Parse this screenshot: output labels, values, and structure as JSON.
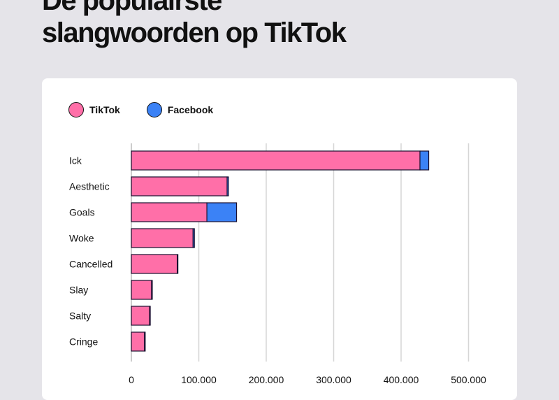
{
  "title_line1": "De populairste",
  "title_line2": "slangwoorden op TikTok",
  "chart_data": {
    "type": "bar",
    "orientation": "horizontal",
    "stacked": true,
    "categories": [
      "Ick",
      "Aesthetic",
      "Goals",
      "Woke",
      "Cancelled",
      "Slay",
      "Salty",
      "Cringe"
    ],
    "series": [
      {
        "name": "TikTok",
        "color": "#ff6fa8",
        "values": [
          428000,
          142000,
          112000,
          91500,
          68000,
          30000,
          27000,
          19500
        ]
      },
      {
        "name": "Facebook",
        "color": "#3b82f6",
        "values": [
          13000,
          2000,
          44000,
          2000,
          1000,
          1000,
          1000,
          1000
        ]
      }
    ],
    "xlim": [
      0,
      500000
    ],
    "xticks": [
      0,
      100000,
      200000,
      300000,
      400000,
      500000
    ],
    "xtick_labels": [
      "0",
      "100.000",
      "200.000",
      "300.000",
      "400.000",
      "500.000"
    ],
    "grid": true,
    "legend": "top-left"
  }
}
